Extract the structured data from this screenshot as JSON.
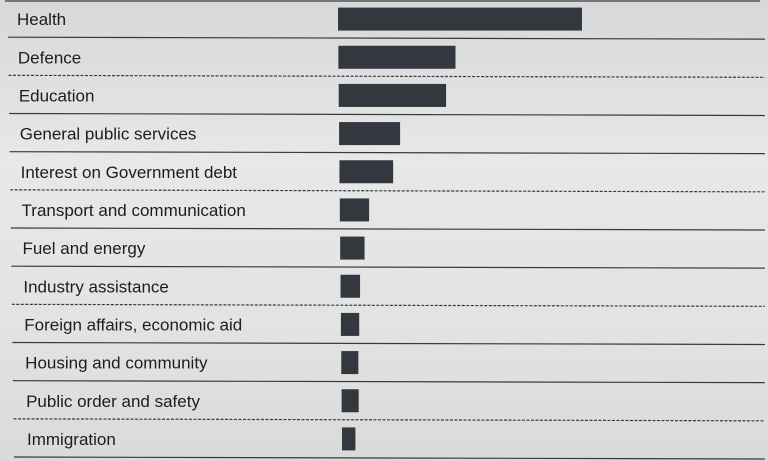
{
  "chart_data": {
    "type": "bar",
    "orientation": "horizontal",
    "title": "",
    "xlabel": "",
    "ylabel": "",
    "grid": false,
    "categories": [
      "Health",
      "Defence",
      "Education",
      "General public services",
      "Interest on Government debt",
      "Transport and communication",
      "Fuel and energy",
      "Industry assistance",
      "Foreign affairs, economic aid",
      "Housing and community",
      "Public order and safety",
      "Immigration"
    ],
    "values": [
      100,
      48,
      44,
      25,
      22,
      12,
      10,
      8,
      7.5,
      7,
      7,
      5.5
    ],
    "xlim": [
      0,
      100
    ],
    "bar_color": "#34373d",
    "line_color": "#3a3a3a"
  }
}
